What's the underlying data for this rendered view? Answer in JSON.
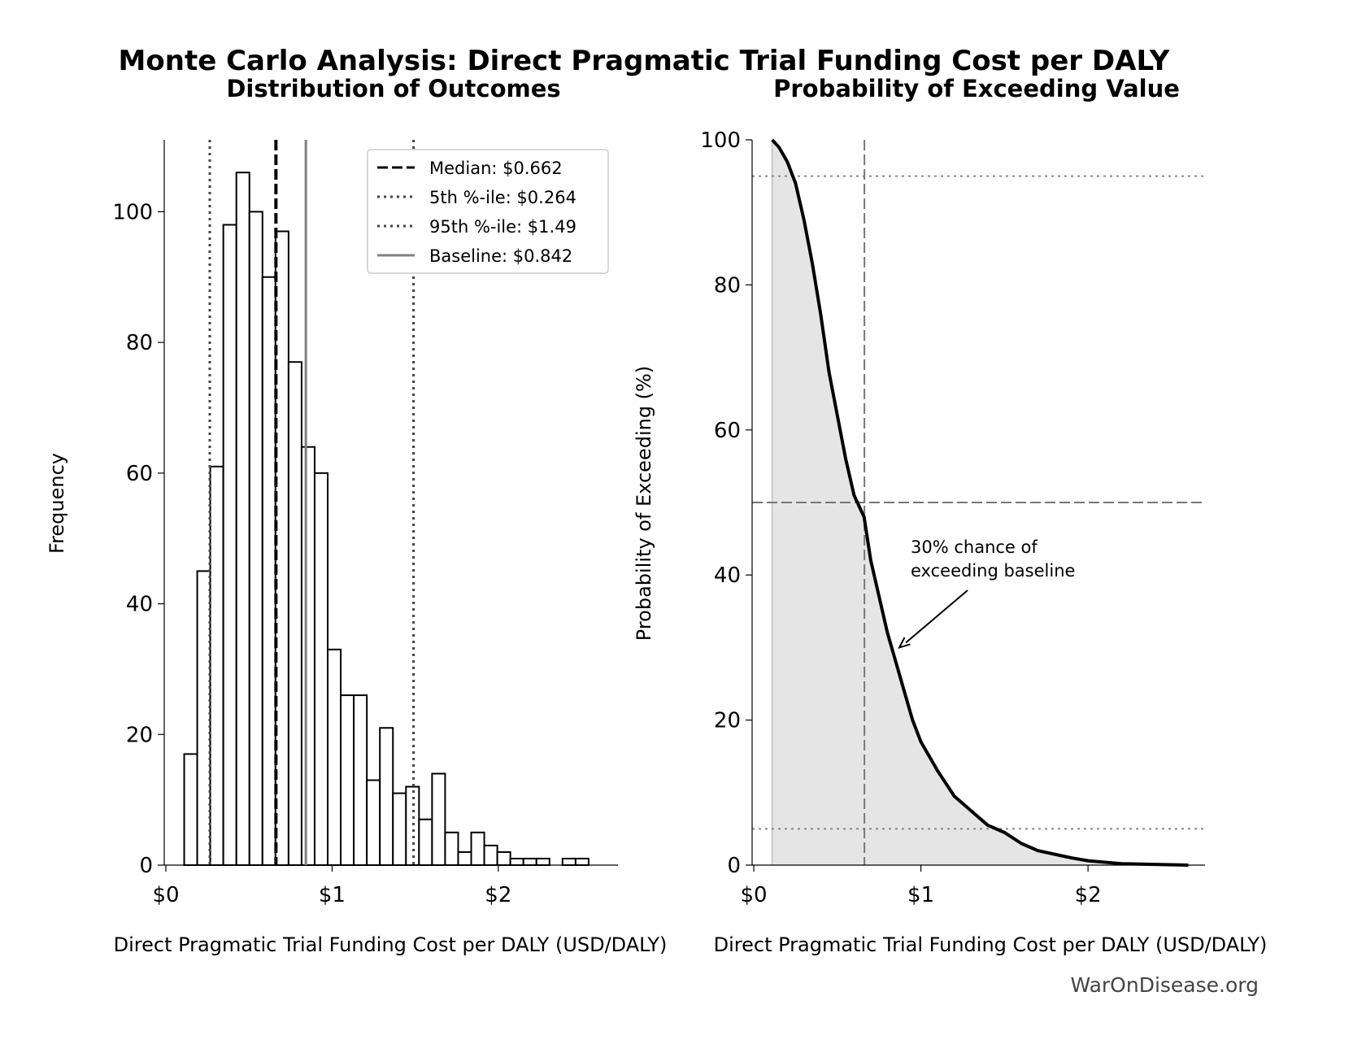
{
  "title": "Monte Carlo Analysis: Direct Pragmatic Trial Funding Cost per DALY",
  "footer": "WarOnDisease.org",
  "chart_data": [
    {
      "type": "bar",
      "subtitle": "Distribution of Outcomes",
      "xlabel": "Direct Pragmatic Trial Funding Cost per DALY (USD/DALY)",
      "ylabel": "Frequency",
      "xlim": [
        -0.01,
        2.72
      ],
      "ylim": [
        0,
        111
      ],
      "xticks": [
        0,
        1,
        2
      ],
      "xtick_labels": [
        "$0",
        "$1",
        "$2"
      ],
      "yticks": [
        0,
        20,
        40,
        60,
        80,
        100
      ],
      "yticks_labels": [
        "0",
        "20",
        "40",
        "60",
        "80",
        "100"
      ],
      "bin_start": 0.11,
      "bin_width": 0.0785,
      "values": [
        17,
        45,
        61,
        98,
        106,
        100,
        90,
        97,
        77,
        64,
        60,
        33,
        26,
        26,
        13,
        21,
        11,
        12,
        7,
        14,
        5,
        2,
        5,
        3,
        2,
        1,
        1,
        1,
        0,
        1,
        1
      ],
      "reference_lines": [
        {
          "name": "Median",
          "value": 0.662,
          "style": "dashed",
          "color": "#000000",
          "label": "Median: $0.662"
        },
        {
          "name": "5th",
          "value": 0.264,
          "style": "dotted",
          "color": "#444444",
          "label": "5th %-ile: $0.264"
        },
        {
          "name": "95th",
          "value": 1.49,
          "style": "dotted",
          "color": "#444444",
          "label": "95th %-ile: $1.49"
        },
        {
          "name": "Baseline",
          "value": 0.842,
          "style": "solid",
          "color": "#808080",
          "label": "Baseline: $0.842"
        }
      ],
      "legend_position": "top-right",
      "grid": false
    },
    {
      "type": "area",
      "subtitle": "Probability of Exceeding Value",
      "xlabel": "Direct Pragmatic Trial Funding Cost per DALY (USD/DALY)",
      "ylabel": "Probability of Exceeding (%)",
      "xlim": [
        -0.01,
        2.7
      ],
      "ylim": [
        0,
        100
      ],
      "xticks": [
        0,
        1,
        2
      ],
      "xtick_labels": [
        "$0",
        "$1",
        "$2"
      ],
      "yticks": [
        0,
        20,
        40,
        60,
        80,
        100
      ],
      "yticks_labels": [
        "0",
        "20",
        "40",
        "60",
        "80",
        "100"
      ],
      "x": [
        0.11,
        0.15,
        0.2,
        0.25,
        0.3,
        0.35,
        0.4,
        0.45,
        0.5,
        0.55,
        0.6,
        0.66,
        0.7,
        0.75,
        0.8,
        0.85,
        0.9,
        0.95,
        1.0,
        1.1,
        1.2,
        1.3,
        1.4,
        1.5,
        1.6,
        1.7,
        1.8,
        1.9,
        2.0,
        2.1,
        2.2,
        2.4,
        2.6
      ],
      "y": [
        100,
        99,
        97,
        94,
        89,
        83,
        76,
        68,
        62,
        56,
        51,
        48,
        42,
        37,
        32,
        28,
        24,
        20,
        17,
        13,
        9.5,
        7.5,
        5.5,
        4.5,
        3,
        2,
        1.5,
        1,
        0.6,
        0.4,
        0.2,
        0.1,
        0
      ],
      "hlines": [
        {
          "value": 95,
          "style": "dotted"
        },
        {
          "value": 50,
          "style": "dashed"
        },
        {
          "value": 5,
          "style": "dotted"
        }
      ],
      "vline": {
        "value": 0.662,
        "style": "dashed"
      },
      "annotation": {
        "text_lines": [
          "30% chance of",
          "exceeding baseline"
        ],
        "point_x": 0.842,
        "point_y": 30
      },
      "grid": false
    }
  ]
}
